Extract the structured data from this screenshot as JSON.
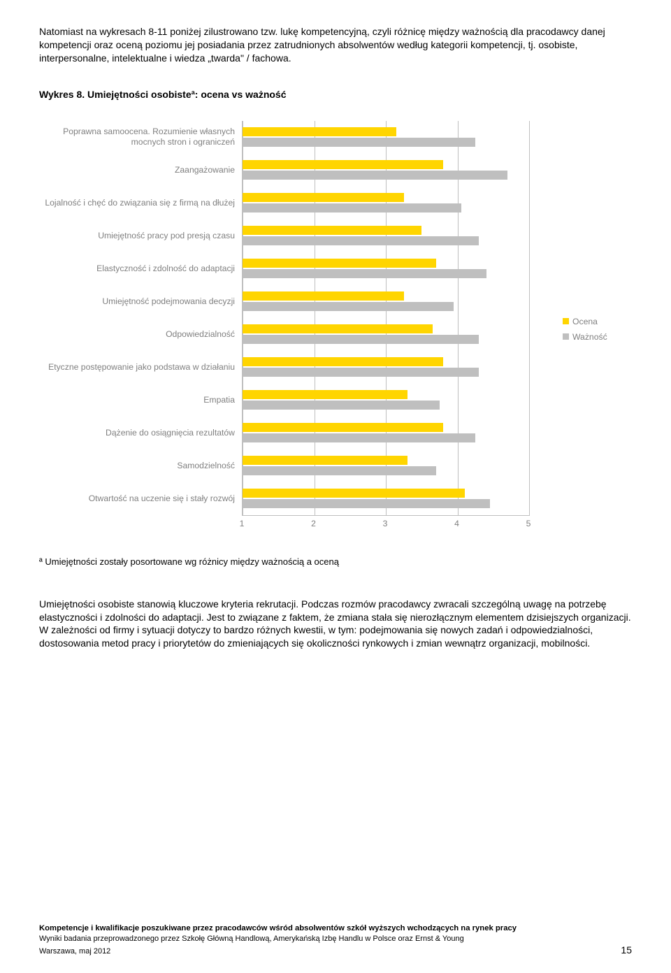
{
  "intro": {
    "p1": "Natomiast na wykresach 8-11 poniżej zilustrowano tzw. lukę kompetencyjną, czyli różnicę między ważnością dla pracodawcy danej kompetencji oraz oceną poziomu jej posiadania przez zatrudnionych absolwentów według kategorii kompetencji, tj. osobiste, interpersonalne, intelektualne i wiedza „twarda\" / fachowa."
  },
  "chart": {
    "title": "Wykres 8. Umiejętności osobisteª: ocena vs ważność",
    "xmin": 1,
    "xmax": 5,
    "ticks": [
      1,
      2,
      3,
      4,
      5
    ],
    "legend": {
      "ocena": "Ocena",
      "waznosc": "Ważność"
    },
    "colors": {
      "ocena": "#ffd500",
      "waznosc": "#bfbfbf",
      "grid": "#bfbfbf",
      "label": "#7f7f7f"
    },
    "rows": [
      {
        "label": "Poprawna samoocena. Rozumienie własnych mocnych stron i ograniczeń",
        "ocena": 3.15,
        "waznosc": 4.25
      },
      {
        "label": "Zaangażowanie",
        "ocena": 3.8,
        "waznosc": 4.7
      },
      {
        "label": "Lojalność i chęć do związania się z firmą na dłużej",
        "ocena": 3.25,
        "waznosc": 4.05
      },
      {
        "label": "Umiejętność pracy pod presją czasu",
        "ocena": 3.5,
        "waznosc": 4.3
      },
      {
        "label": "Elastyczność i zdolność do adaptacji",
        "ocena": 3.7,
        "waznosc": 4.4
      },
      {
        "label": "Umiejętność podejmowania decyzji",
        "ocena": 3.25,
        "waznosc": 3.95
      },
      {
        "label": "Odpowiedzialność",
        "ocena": 3.65,
        "waznosc": 4.3
      },
      {
        "label": "Etyczne postępowanie jako podstawa w działaniu",
        "ocena": 3.8,
        "waznosc": 4.3
      },
      {
        "label": "Empatia",
        "ocena": 3.3,
        "waznosc": 3.75
      },
      {
        "label": "Dążenie do osiągnięcia rezultatów",
        "ocena": 3.8,
        "waznosc": 4.25
      },
      {
        "label": "Samodzielność",
        "ocena": 3.3,
        "waznosc": 3.7
      },
      {
        "label": "Otwartość na uczenie się i stały rozwój",
        "ocena": 4.1,
        "waznosc": 4.45
      }
    ]
  },
  "footnote": "ª Umiejętności zostały posortowane wg różnicy między ważnością a oceną",
  "body": "Umiejętności osobiste stanowią kluczowe kryteria rekrutacji. Podczas rozmów pracodawcy zwracali szczególną uwagę na potrzebę elastyczności i zdolności do adaptacji. Jest to związane z faktem, że zmiana stała się nierozłącznym elementem dzisiejszych organizacji. W zależności od firmy i sytuacji dotyczy to bardzo różnych kwestii, w tym: podejmowania się nowych zadań i odpowiedzialności, dostosowania metod pracy i priorytetów do zmieniających się okoliczności rynkowych i zmian wewnątrz organizacji, mobilności.",
  "footer": {
    "line1": "Kompetencje i kwalifikacje poszukiwane przez pracodawców wśród absolwentów szkół wyższych wchodzących na rynek pracy",
    "line2": "Wyniki badania przeprowadzonego przez Szkołę Główną Handlową, Amerykańską Izbę Handlu w Polsce oraz Ernst & Young",
    "line3": "Warszawa, maj 2012",
    "page": "15"
  }
}
